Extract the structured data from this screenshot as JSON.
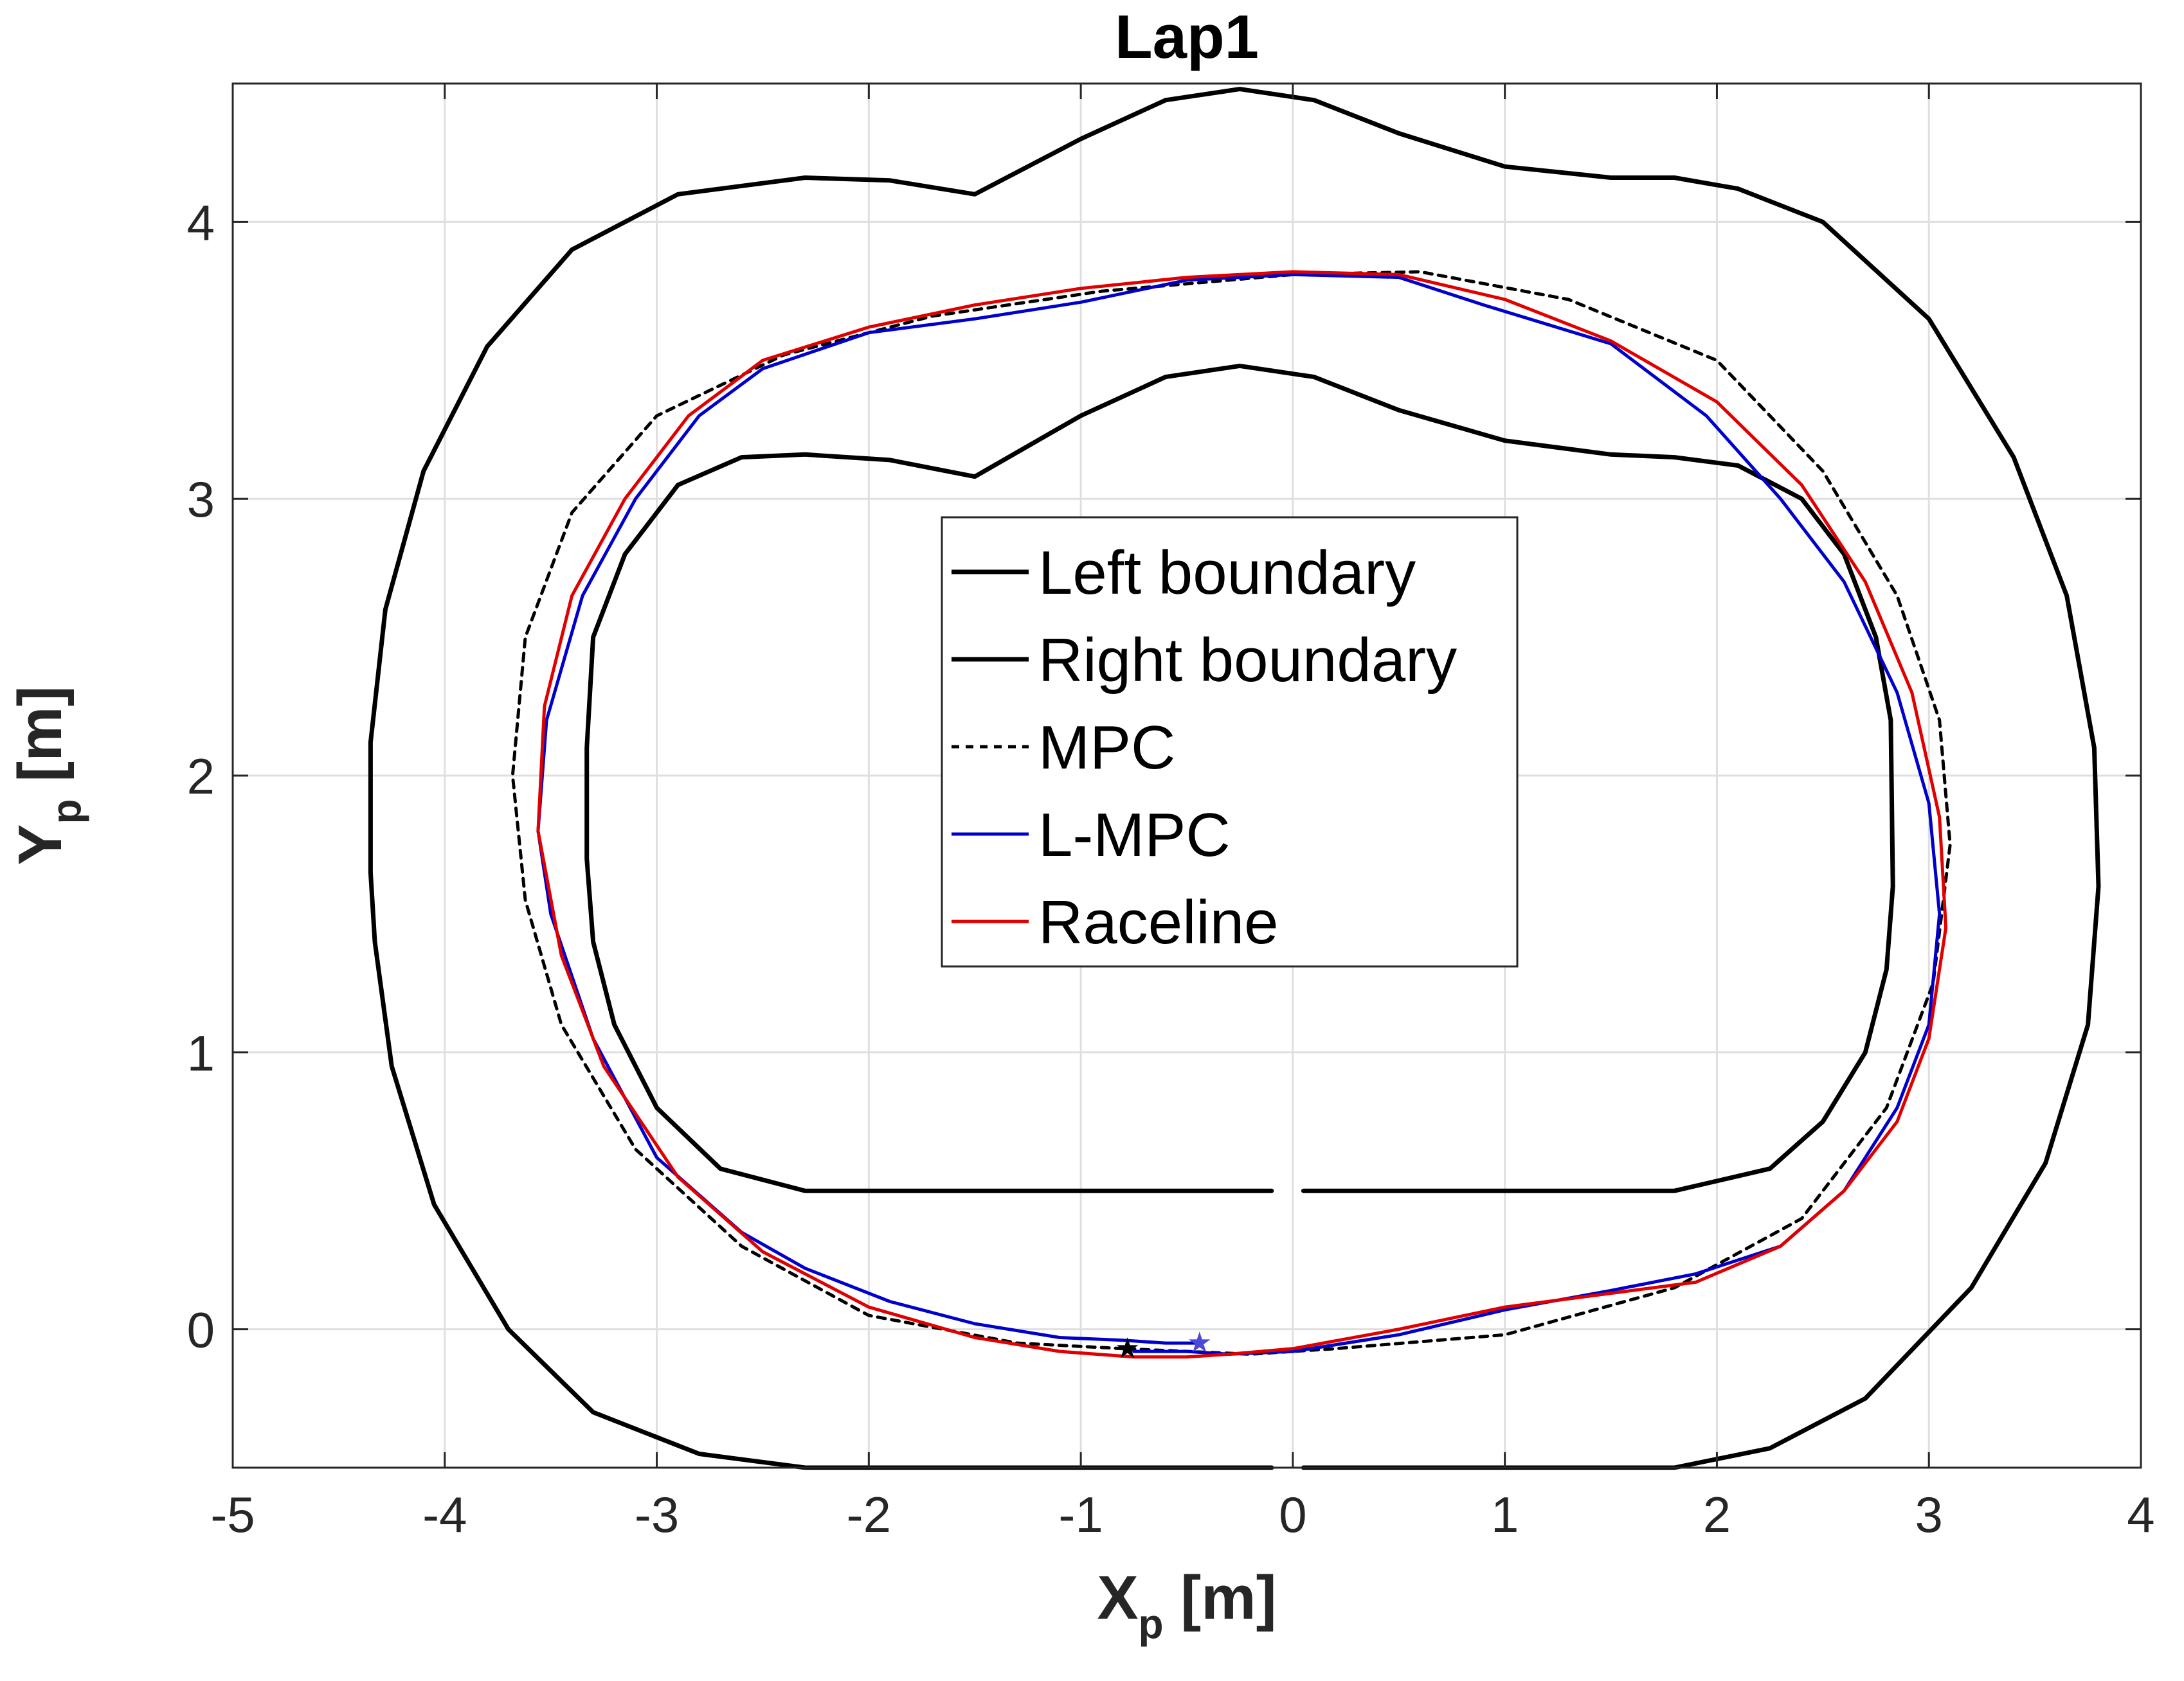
{
  "chart_data": {
    "type": "line",
    "title": "Lap1",
    "xlabel": {
      "main": "X",
      "sub": "p",
      "unit": " [m]"
    },
    "ylabel": {
      "main": "Y",
      "sub": "p",
      "unit": " [m]"
    },
    "xlim": [
      -5,
      4
    ],
    "ylim": [
      -0.5,
      4.5
    ],
    "xticks": [
      -5,
      -4,
      -3,
      -2,
      -1,
      0,
      1,
      2,
      3,
      4
    ],
    "yticks": [
      0,
      1,
      2,
      3,
      4
    ],
    "xtick_labels": [
      "-5",
      "-4",
      "-3",
      "-2",
      "-1",
      "0",
      "1",
      "2",
      "3",
      "4"
    ],
    "ytick_labels": [
      "0",
      "1",
      "2",
      "3",
      "4"
    ],
    "grid": true,
    "legend_position": "center",
    "series": [
      {
        "name": "Left boundary",
        "color": "#000000",
        "style": "solid",
        "points": [
          [
            -0.1,
            0.5
          ],
          [
            -2.3,
            0.5
          ],
          [
            -2.7,
            0.58
          ],
          [
            -3.0,
            0.8
          ],
          [
            -3.2,
            1.1
          ],
          [
            -3.3,
            1.4
          ],
          [
            -3.33,
            1.7
          ],
          [
            -3.33,
            2.1
          ],
          [
            -3.3,
            2.5
          ],
          [
            -3.15,
            2.8
          ],
          [
            -2.9,
            3.05
          ],
          [
            -2.6,
            3.15
          ],
          [
            -2.3,
            3.16
          ],
          [
            -1.9,
            3.14
          ],
          [
            -1.5,
            3.08
          ],
          [
            -1.0,
            3.3
          ],
          [
            -0.6,
            3.44
          ],
          [
            -0.25,
            3.48
          ],
          [
            0.1,
            3.44
          ],
          [
            0.5,
            3.32
          ],
          [
            1.0,
            3.21
          ],
          [
            1.5,
            3.16
          ],
          [
            1.8,
            3.15
          ],
          [
            2.1,
            3.12
          ],
          [
            2.4,
            3.0
          ],
          [
            2.6,
            2.8
          ],
          [
            2.75,
            2.5
          ],
          [
            2.82,
            2.2
          ],
          [
            2.83,
            1.6
          ],
          [
            2.8,
            1.3
          ],
          [
            2.7,
            1.0
          ],
          [
            2.5,
            0.75
          ],
          [
            2.25,
            0.58
          ],
          [
            1.8,
            0.5
          ],
          [
            0.05,
            0.5
          ]
        ]
      },
      {
        "name": "Right boundary",
        "color": "#000000",
        "style": "solid",
        "points": [
          [
            -0.1,
            -0.5
          ],
          [
            -2.3,
            -0.5
          ],
          [
            -2.8,
            -0.45
          ],
          [
            -3.3,
            -0.3
          ],
          [
            -3.7,
            0.0
          ],
          [
            -4.05,
            0.45
          ],
          [
            -4.25,
            0.95
          ],
          [
            -4.33,
            1.4
          ],
          [
            -4.35,
            1.65
          ],
          [
            -4.35,
            2.12
          ],
          [
            -4.28,
            2.6
          ],
          [
            -4.1,
            3.1
          ],
          [
            -3.8,
            3.55
          ],
          [
            -3.4,
            3.9
          ],
          [
            -2.9,
            4.1
          ],
          [
            -2.3,
            4.16
          ],
          [
            -1.9,
            4.15
          ],
          [
            -1.5,
            4.1
          ],
          [
            -1.0,
            4.3
          ],
          [
            -0.6,
            4.44
          ],
          [
            -0.25,
            4.48
          ],
          [
            0.1,
            4.44
          ],
          [
            0.5,
            4.32
          ],
          [
            1.0,
            4.2
          ],
          [
            1.5,
            4.16
          ],
          [
            1.8,
            4.16
          ],
          [
            2.1,
            4.12
          ],
          [
            2.5,
            4.0
          ],
          [
            3.0,
            3.65
          ],
          [
            3.4,
            3.15
          ],
          [
            3.65,
            2.65
          ],
          [
            3.78,
            2.1
          ],
          [
            3.8,
            1.6
          ],
          [
            3.75,
            1.1
          ],
          [
            3.55,
            0.6
          ],
          [
            3.2,
            0.15
          ],
          [
            2.7,
            -0.25
          ],
          [
            2.25,
            -0.43
          ],
          [
            1.8,
            -0.5
          ],
          [
            0.05,
            -0.5
          ]
        ]
      },
      {
        "name": "MPC",
        "color": "#000000",
        "style": "dashed",
        "points": [
          [
            -0.8,
            -0.07
          ],
          [
            -1.3,
            -0.05
          ],
          [
            -2.0,
            0.05
          ],
          [
            -2.6,
            0.3
          ],
          [
            -3.1,
            0.65
          ],
          [
            -3.45,
            1.1
          ],
          [
            -3.62,
            1.55
          ],
          [
            -3.68,
            2.0
          ],
          [
            -3.62,
            2.5
          ],
          [
            -3.4,
            2.95
          ],
          [
            -3.0,
            3.3
          ],
          [
            -2.4,
            3.52
          ],
          [
            -1.7,
            3.66
          ],
          [
            -0.9,
            3.75
          ],
          [
            0.0,
            3.81
          ],
          [
            0.6,
            3.82
          ],
          [
            1.3,
            3.72
          ],
          [
            2.0,
            3.5
          ],
          [
            2.5,
            3.1
          ],
          [
            2.85,
            2.65
          ],
          [
            3.05,
            2.2
          ],
          [
            3.1,
            1.75
          ],
          [
            3.02,
            1.25
          ],
          [
            2.8,
            0.8
          ],
          [
            2.4,
            0.4
          ],
          [
            1.8,
            0.15
          ],
          [
            1.0,
            -0.02
          ],
          [
            0.2,
            -0.07
          ],
          [
            -0.2,
            -0.09
          ],
          [
            -0.8,
            -0.07
          ]
        ]
      },
      {
        "name": "L-MPC",
        "color": "#0000cc",
        "style": "solid",
        "points": [
          [
            -0.45,
            -0.05
          ],
          [
            -0.6,
            -0.05
          ],
          [
            -0.8,
            -0.04
          ],
          [
            -1.1,
            -0.03
          ],
          [
            -1.5,
            0.02
          ],
          [
            -1.9,
            0.1
          ],
          [
            -2.3,
            0.22
          ],
          [
            -2.6,
            0.35
          ],
          [
            -3.0,
            0.62
          ],
          [
            -3.3,
            1.05
          ],
          [
            -3.5,
            1.5
          ],
          [
            -3.56,
            1.8
          ],
          [
            -3.52,
            2.2
          ],
          [
            -3.35,
            2.65
          ],
          [
            -3.1,
            3.0
          ],
          [
            -2.8,
            3.3
          ],
          [
            -2.5,
            3.47
          ],
          [
            -2.0,
            3.6
          ],
          [
            -1.5,
            3.65
          ],
          [
            -1.0,
            3.71
          ],
          [
            -0.5,
            3.79
          ],
          [
            0.0,
            3.81
          ],
          [
            0.5,
            3.8
          ],
          [
            0.9,
            3.7
          ],
          [
            1.5,
            3.56
          ],
          [
            1.95,
            3.3
          ],
          [
            2.3,
            3.0
          ],
          [
            2.6,
            2.7
          ],
          [
            2.85,
            2.3
          ],
          [
            3.0,
            1.9
          ],
          [
            3.05,
            1.5
          ],
          [
            3.0,
            1.1
          ],
          [
            2.85,
            0.8
          ],
          [
            2.6,
            0.5
          ],
          [
            2.3,
            0.3
          ],
          [
            1.9,
            0.2
          ],
          [
            1.5,
            0.14
          ],
          [
            1.0,
            0.07
          ],
          [
            0.5,
            -0.02
          ],
          [
            0.0,
            -0.08
          ],
          [
            -0.3,
            -0.09
          ],
          [
            -0.5,
            -0.08
          ],
          [
            -0.75,
            -0.08
          ]
        ]
      },
      {
        "name": "Raceline",
        "color": "#e00000",
        "style": "solid",
        "points": [
          [
            -0.75,
            -0.1
          ],
          [
            -1.1,
            -0.08
          ],
          [
            -1.5,
            -0.03
          ],
          [
            -2.0,
            0.08
          ],
          [
            -2.5,
            0.28
          ],
          [
            -2.9,
            0.55
          ],
          [
            -3.25,
            0.95
          ],
          [
            -3.45,
            1.35
          ],
          [
            -3.56,
            1.8
          ],
          [
            -3.53,
            2.25
          ],
          [
            -3.4,
            2.65
          ],
          [
            -3.15,
            3.0
          ],
          [
            -2.85,
            3.3
          ],
          [
            -2.5,
            3.5
          ],
          [
            -2.0,
            3.62
          ],
          [
            -1.5,
            3.7
          ],
          [
            -1.0,
            3.76
          ],
          [
            -0.5,
            3.8
          ],
          [
            0.0,
            3.82
          ],
          [
            0.5,
            3.81
          ],
          [
            1.0,
            3.72
          ],
          [
            1.5,
            3.57
          ],
          [
            2.0,
            3.35
          ],
          [
            2.4,
            3.05
          ],
          [
            2.7,
            2.7
          ],
          [
            2.92,
            2.3
          ],
          [
            3.05,
            1.85
          ],
          [
            3.08,
            1.45
          ],
          [
            3.0,
            1.05
          ],
          [
            2.85,
            0.75
          ],
          [
            2.6,
            0.5
          ],
          [
            2.3,
            0.3
          ],
          [
            1.9,
            0.17
          ],
          [
            1.5,
            0.13
          ],
          [
            1.0,
            0.08
          ],
          [
            0.5,
            0.0
          ],
          [
            0.0,
            -0.07
          ],
          [
            -0.3,
            -0.09
          ],
          [
            -0.5,
            -0.1
          ],
          [
            -0.75,
            -0.1
          ]
        ]
      }
    ],
    "markers": [
      {
        "name": "mpc-start-star",
        "x": -0.78,
        "y": -0.07,
        "color": "#000000",
        "symbol": "★"
      },
      {
        "name": "lmpc-start-star",
        "x": -0.44,
        "y": -0.05,
        "color": "#4a4ad6",
        "symbol": "★"
      }
    ]
  }
}
